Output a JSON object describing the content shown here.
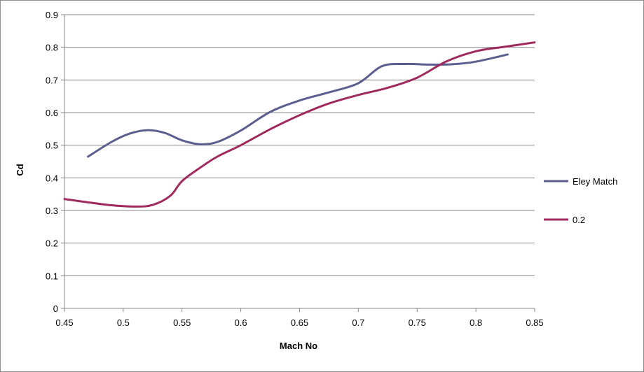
{
  "chart_data": {
    "type": "line",
    "title": "",
    "xlabel": "Mach No",
    "ylabel": "Cd",
    "xlim": [
      0.45,
      0.85
    ],
    "ylim": [
      0,
      0.9
    ],
    "x_ticks": [
      0.45,
      0.5,
      0.55,
      0.6,
      0.65,
      0.7,
      0.75,
      0.8,
      0.85
    ],
    "y_ticks": [
      0,
      0.1,
      0.2,
      0.3,
      0.4,
      0.5,
      0.6,
      0.7,
      0.8,
      0.9
    ],
    "x_tick_labels": [
      "0.45",
      "0.5",
      "0.55",
      "0.6",
      "0.65",
      "0.7",
      "0.75",
      "0.8",
      "0.85"
    ],
    "y_tick_labels": [
      "0",
      "0.1",
      "0.2",
      "0.3",
      "0.4",
      "0.5",
      "0.6",
      "0.7",
      "0.8",
      "0.9"
    ],
    "grid": {
      "horizontal": true,
      "vertical": false
    },
    "legend_placement": "right",
    "series": [
      {
        "name": "Eley Match",
        "color": "#5b5e8e",
        "points": [
          [
            0.47,
            0.465
          ],
          [
            0.49,
            0.51
          ],
          [
            0.505,
            0.535
          ],
          [
            0.52,
            0.546
          ],
          [
            0.535,
            0.538
          ],
          [
            0.55,
            0.515
          ],
          [
            0.565,
            0.503
          ],
          [
            0.58,
            0.51
          ],
          [
            0.6,
            0.545
          ],
          [
            0.625,
            0.602
          ],
          [
            0.65,
            0.637
          ],
          [
            0.675,
            0.662
          ],
          [
            0.7,
            0.69
          ],
          [
            0.72,
            0.742
          ],
          [
            0.74,
            0.749
          ],
          [
            0.76,
            0.747
          ],
          [
            0.78,
            0.748
          ],
          [
            0.8,
            0.756
          ],
          [
            0.827,
            0.778
          ]
        ]
      },
      {
        "name": "0.2",
        "color": "#9e2a5e",
        "points": [
          [
            0.45,
            0.335
          ],
          [
            0.47,
            0.325
          ],
          [
            0.49,
            0.316
          ],
          [
            0.51,
            0.312
          ],
          [
            0.525,
            0.317
          ],
          [
            0.54,
            0.345
          ],
          [
            0.55,
            0.39
          ],
          [
            0.565,
            0.43
          ],
          [
            0.58,
            0.465
          ],
          [
            0.6,
            0.5
          ],
          [
            0.625,
            0.549
          ],
          [
            0.65,
            0.592
          ],
          [
            0.675,
            0.628
          ],
          [
            0.7,
            0.654
          ],
          [
            0.725,
            0.676
          ],
          [
            0.75,
            0.707
          ],
          [
            0.775,
            0.757
          ],
          [
            0.8,
            0.788
          ],
          [
            0.825,
            0.802
          ],
          [
            0.85,
            0.815
          ]
        ]
      }
    ]
  }
}
